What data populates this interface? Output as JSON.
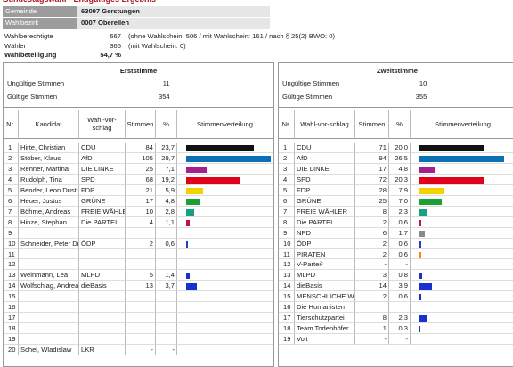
{
  "header": {
    "title": "Bundestagswahl - Endgültiges Ergebnis",
    "rows": [
      [
        "Gemeinde",
        "63097 Gerstungen"
      ],
      [
        "Wahlbezirk",
        "0007 Oberellen"
      ]
    ]
  },
  "summary": [
    {
      "label": "Wahlberechtigte",
      "value": "667",
      "note": "(ohne Wahlschein: 506 / mit Wahlschein: 161 / nach § 25(2) BWO: 0)"
    },
    {
      "label": "Wähler",
      "value": "365",
      "note": "(mit Wahlschein: 0)"
    },
    {
      "label": "Wahlbeteiligung",
      "value": "54,7 %"
    }
  ],
  "panels": [
    {
      "title": "Erststimme",
      "invalid_label": "Ungültige Stimmen",
      "invalid": "11",
      "valid_label": "Gültige Stimmen",
      "valid": "354",
      "columns": [
        "Nr.",
        "Kandidat",
        "Wahl-vor-schlag",
        "Stimmen",
        "%",
        "Stimmenverteilung"
      ],
      "rows": [
        {
          "nr": "1",
          "name": "Hirte, Christian",
          "party": "CDU",
          "votes": "84",
          "pct": "23,7",
          "color": "#111111"
        },
        {
          "nr": "2",
          "name": "Stöber, Klaus",
          "party": "AfD",
          "votes": "105",
          "pct": "29,7",
          "color": "#0a6fb7"
        },
        {
          "nr": "3",
          "name": "Renner, Martina",
          "party": "DIE LINKE",
          "votes": "25",
          "pct": "7,1",
          "color": "#a3208c"
        },
        {
          "nr": "4",
          "name": "Rudolph, Tina",
          "party": "SPD",
          "votes": "68",
          "pct": "19,2",
          "color": "#e2001a"
        },
        {
          "nr": "5",
          "name": "Bender, Leon Dustin",
          "party": "FDP",
          "votes": "21",
          "pct": "5,9",
          "color": "#f5d100"
        },
        {
          "nr": "6",
          "name": "Heuer, Justus",
          "party": "GRÜNE",
          "votes": "17",
          "pct": "4,8",
          "color": "#1aa037"
        },
        {
          "nr": "7",
          "name": "Böhme, Andreas",
          "party": "FREIE WÄHLER",
          "votes": "10",
          "pct": "2,8",
          "color": "#16a085"
        },
        {
          "nr": "8",
          "name": "Hinze, Stephan",
          "party": "Die PARTEI",
          "votes": "4",
          "pct": "1,1",
          "color": "#c0143c"
        },
        {
          "nr": "9"
        },
        {
          "nr": "10",
          "name": "Schneider, Peter Dr.",
          "party": "ÖDP",
          "votes": "2",
          "pct": "0,6",
          "color": "#1f3fbf"
        },
        {
          "nr": "11"
        },
        {
          "nr": "12"
        },
        {
          "nr": "13",
          "name": "Weinmann, Lea",
          "party": "MLPD",
          "votes": "5",
          "pct": "1,4",
          "color": "#1a2fd0"
        },
        {
          "nr": "14",
          "name": "Wolfschlag, Andreas",
          "party": "dieBasis",
          "votes": "13",
          "pct": "3,7",
          "color": "#1a2fd0"
        },
        {
          "nr": "15"
        },
        {
          "nr": "16"
        },
        {
          "nr": "17"
        },
        {
          "nr": "18"
        },
        {
          "nr": "19"
        },
        {
          "nr": "20",
          "name": "Schel, Wladislaw",
          "party": "LKR",
          "votes": "-",
          "pct": "-"
        }
      ]
    },
    {
      "title": "Zweitstimme",
      "invalid_label": "Ungültige Stimmen",
      "invalid": "10",
      "valid_label": "Gültige Stimmen",
      "valid": "355",
      "columns": [
        "Nr.",
        "Wahl-vor-schlag",
        "Stimmen",
        "%",
        "Stimmenverteilung"
      ],
      "rows": [
        {
          "nr": "1",
          "party": "CDU",
          "votes": "71",
          "pct": "20,0",
          "color": "#111111"
        },
        {
          "nr": "2",
          "party": "AfD",
          "votes": "94",
          "pct": "26,5",
          "color": "#0a6fb7"
        },
        {
          "nr": "3",
          "party": "DIE LINKE",
          "votes": "17",
          "pct": "4,8",
          "color": "#a3208c"
        },
        {
          "nr": "4",
          "party": "SPD",
          "votes": "72",
          "pct": "20,3",
          "color": "#e2001a"
        },
        {
          "nr": "5",
          "party": "FDP",
          "votes": "28",
          "pct": "7,9",
          "color": "#f5d100"
        },
        {
          "nr": "6",
          "party": "GRÜNE",
          "votes": "25",
          "pct": "7,0",
          "color": "#1aa037"
        },
        {
          "nr": "7",
          "party": "FREIE WÄHLER",
          "votes": "8",
          "pct": "2,3",
          "color": "#16a085"
        },
        {
          "nr": "8",
          "party": "Die PARTEI",
          "votes": "2",
          "pct": "0,6",
          "color": "#c0143c"
        },
        {
          "nr": "9",
          "party": "NPD",
          "votes": "6",
          "pct": "1,7",
          "color": "#8a8a8a"
        },
        {
          "nr": "10",
          "party": "ÖDP",
          "votes": "2",
          "pct": "0,6",
          "color": "#1f3fbf"
        },
        {
          "nr": "11",
          "party": "PIRATEN",
          "votes": "2",
          "pct": "0,6",
          "color": "#ff8800"
        },
        {
          "nr": "12",
          "party": "V-Partei³",
          "votes": "-",
          "pct": "-"
        },
        {
          "nr": "13",
          "party": "MLPD",
          "votes": "3",
          "pct": "0,8",
          "color": "#1a2fd0"
        },
        {
          "nr": "14",
          "party": "dieBasis",
          "votes": "14",
          "pct": "3,9",
          "color": "#1a2fd0"
        },
        {
          "nr": "15",
          "party": "MENSCHLICHE WELT",
          "votes": "2",
          "pct": "0,6",
          "color": "#1a2fd0"
        },
        {
          "nr": "16",
          "party": "Die Humanisten"
        },
        {
          "nr": "17",
          "party": "Tierschutzpartei",
          "votes": "8",
          "pct": "2,3",
          "color": "#1a2fd0"
        },
        {
          "nr": "18",
          "party": "Team Todenhöfer",
          "votes": "1",
          "pct": "0,3",
          "color": "#1a2fd0"
        },
        {
          "nr": "19",
          "party": "Volt",
          "votes": "-",
          "pct": "-"
        }
      ]
    }
  ]
}
